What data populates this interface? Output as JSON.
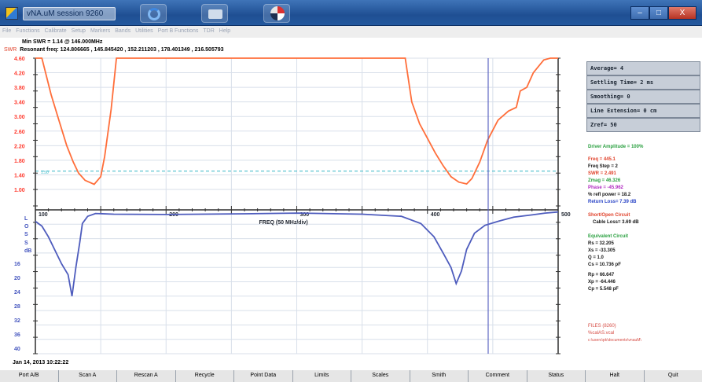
{
  "window": {
    "title": "vNA.uM session 9260",
    "minimize": "–",
    "maximize": "□",
    "close": "X"
  },
  "menu": [
    "File",
    "Functions",
    "Calibrate",
    "Setup",
    "Markers",
    "Bands",
    "Utilities",
    "Port B Functions",
    "TDR",
    "Help"
  ],
  "info": {
    "min_swr_label": "Min SWR =",
    "min_swr_value": "1.14 @ 146.000MHz",
    "swr_tag": "SWR",
    "resonant_label": "Resonant freq:",
    "resonant_values": "124.806665 , 145.845420 , 152.211203 , 178.401349 , 216.505793"
  },
  "settings": [
    "Average= 4",
    "Settling Time= 2 ms",
    "Smoothing= 0",
    "Line Extension= 0 cm",
    "Zref= 50"
  ],
  "readouts": {
    "drive": "Driver Amplitude = 100%",
    "freq": "Freq = 445.1",
    "freq_step": "Freq Step = 2",
    "swr": "SWR = 2.491",
    "zmag": "Zmag = 46.326",
    "phase": "Phase = -45.962",
    "refl_power": "% refl power = 18.2",
    "return_loss": "Return Loss= 7.39 dB",
    "short_open": "Short/Open Circuit",
    "cable_loss": "Cable Loss= 3.69 dB",
    "eq_header": "Equivalent Circuit",
    "rs": "Rs = 32.205",
    "xs": "Xs = -33.305",
    "q": "Q = 1.0",
    "cs": "Cs = 10.736 pF",
    "rp": "Rp = 66.647",
    "xp": "Xp = -64.446",
    "cp": "Cp = 5.548 pF",
    "files": "FILES (8260)",
    "file1": "%calAS.vcal",
    "file2": "c:\\users\\pk\\documents\\vnauM\\"
  },
  "timestamp": "Jan 14, 2013  10:22:22",
  "buttons": [
    "Port A/B",
    "Scan A",
    "Rescan A",
    "Recycle",
    "Point Data",
    "Limits",
    "Scales",
    "Smith",
    "Comment",
    "Status",
    "Halt",
    "Quit"
  ],
  "plot": {
    "swr_labels": [
      "4.60",
      "4.20",
      "3.80",
      "3.40",
      "3.00",
      "2.60",
      "2.20",
      "1.80",
      "1.40",
      "1.00"
    ],
    "ref_line_label": "1.50",
    "rl_labels": [
      "L",
      "O",
      "S",
      "S",
      "dB",
      "16",
      "20",
      "24",
      "28",
      "32",
      "36",
      "40"
    ],
    "freq_labels": [
      "100",
      "200",
      "300",
      "400",
      "500"
    ],
    "xlabel": "FREQ (50 MHz/div)",
    "colors": {
      "swr": "#ff6e3a",
      "return_loss": "#4e5cbd",
      "reference": "#36b7c7",
      "cursor": "#5f67c3",
      "axis": "#2f2f2f",
      "grid": "#d8dfea"
    }
  },
  "chart_data": [
    {
      "type": "line",
      "title": "",
      "xlabel": "FREQ (50 MHz/div)",
      "ylabel": "SWR",
      "xlim": [
        100,
        500
      ],
      "ylim": [
        1.0,
        4.6
      ],
      "series": [
        {
          "name": "SWR",
          "x": [
            100,
            105,
            112,
            118,
            124,
            129,
            133,
            138,
            145,
            150,
            153,
            158,
            162,
            166,
            378,
            383,
            388,
            394,
            400,
            406,
            412,
            418,
            424,
            430,
            434,
            440,
            446,
            454,
            462,
            468,
            471,
            476,
            481,
            489,
            494,
            500
          ],
          "values": [
            4.6,
            4.6,
            3.6,
            2.9,
            2.2,
            1.75,
            1.45,
            1.25,
            1.14,
            1.35,
            1.9,
            3.2,
            4.6,
            4.6,
            4.6,
            4.6,
            3.4,
            2.8,
            2.4,
            2.0,
            1.65,
            1.35,
            1.2,
            1.15,
            1.3,
            1.75,
            2.35,
            2.9,
            3.15,
            3.25,
            3.7,
            3.8,
            4.2,
            4.55,
            4.6,
            4.6
          ]
        }
      ],
      "reference_line": 1.5
    },
    {
      "type": "line",
      "title": "",
      "xlabel": "FREQ (50 MHz/div)",
      "ylabel": "LOSS dB",
      "xlim": [
        100,
        500
      ],
      "ylim": [
        40,
        0
      ],
      "series": [
        {
          "name": "Return Loss",
          "x": [
            100,
            105,
            110,
            116,
            120,
            125,
            128,
            131,
            134,
            136,
            140,
            146,
            160,
            200,
            260,
            300,
            350,
            380,
            395,
            405,
            412,
            418,
            422,
            426,
            430,
            436,
            444,
            454,
            466,
            480,
            490,
            500
          ],
          "values": [
            3.2,
            4.5,
            7.5,
            12,
            15,
            18,
            24,
            16,
            9,
            3.8,
            1.8,
            1.0,
            1.2,
            1.3,
            1.1,
            0.9,
            1.2,
            1.8,
            3.8,
            7.5,
            12,
            16,
            20.5,
            17,
            11,
            6.5,
            4.3,
            3.2,
            2.0,
            1.4,
            0.9,
            0.6
          ]
        }
      ]
    }
  ]
}
